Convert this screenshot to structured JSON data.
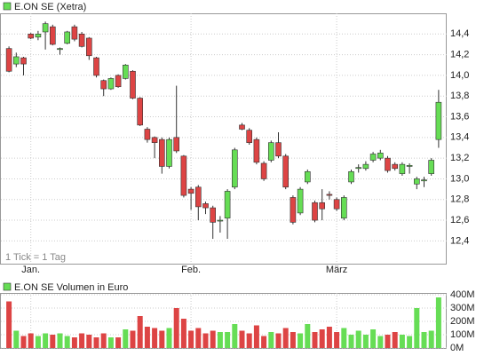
{
  "chart_data": {
    "type": "candlestick",
    "title": "E.ON SE (Xetra)",
    "note": "1 Tick = 1 Tag",
    "up_color": "#66dd55",
    "down_color": "#dd4444",
    "categories": [
      null,
      null,
      null,
      "Jan.",
      null,
      null,
      null,
      null,
      null,
      null,
      null,
      null,
      null,
      null,
      null,
      null,
      null,
      null,
      null,
      null,
      null,
      null,
      null,
      null,
      null,
      "Feb.",
      null,
      null,
      null,
      null,
      null,
      null,
      null,
      null,
      null,
      null,
      null,
      null,
      null,
      null,
      null,
      null,
      null,
      null,
      null,
      "März",
      null,
      null,
      null,
      null,
      null,
      null,
      null,
      null,
      null,
      null,
      null,
      null,
      null,
      null
    ],
    "open": [
      14.26,
      14.11,
      14.17,
      14.4,
      14.37,
      14.42,
      14.47,
      14.25,
      14.31,
      14.47,
      14.4,
      14.36,
      14.17,
      13.95,
      13.87,
      14.0,
      13.97,
      14.04,
      13.78,
      13.48,
      13.4,
      13.38,
      13.12,
      13.4,
      13.22,
      12.9,
      12.92,
      12.76,
      12.72,
      12.6,
      12.62,
      12.92,
      13.52,
      13.47,
      13.38,
      13.15,
      13.18,
      13.35,
      13.22,
      12.82,
      12.67,
      12.97,
      12.77,
      12.77,
      12.85,
      12.8,
      12.62,
      12.97,
      13.1,
      13.1,
      13.18,
      13.2,
      13.2,
      13.14,
      13.05,
      13.12,
      12.95,
      12.98,
      13.05,
      13.38
    ],
    "high": [
      14.28,
      14.22,
      14.18,
      14.41,
      14.43,
      14.52,
      14.49,
      14.27,
      14.43,
      14.49,
      14.42,
      14.37,
      14.18,
      13.96,
      13.98,
      14.01,
      14.11,
      14.05,
      13.79,
      13.5,
      13.41,
      13.4,
      13.4,
      13.9,
      13.23,
      12.92,
      12.94,
      12.78,
      12.74,
      12.64,
      12.9,
      13.3,
      13.54,
      13.49,
      13.4,
      13.17,
      13.37,
      13.45,
      13.24,
      12.84,
      12.92,
      13.09,
      12.79,
      12.9,
      12.88,
      12.82,
      12.84,
      13.09,
      13.14,
      13.17,
      13.26,
      13.28,
      13.22,
      13.16,
      13.16,
      13.15,
      13.02,
      13.02,
      13.2,
      13.86
    ],
    "low": [
      14.03,
      14.08,
      14.0,
      14.35,
      14.34,
      14.25,
      14.29,
      14.2,
      14.3,
      14.33,
      14.27,
      14.15,
      13.98,
      13.8,
      13.86,
      13.88,
      13.96,
      13.77,
      13.51,
      13.35,
      13.2,
      13.05,
      13.1,
      13.25,
      12.82,
      12.7,
      12.6,
      12.66,
      12.42,
      12.48,
      12.42,
      12.9,
      13.47,
      13.33,
      13.14,
      12.98,
      13.16,
      13.2,
      12.9,
      12.56,
      12.65,
      12.95,
      12.58,
      12.6,
      12.8,
      12.69,
      12.6,
      12.95,
      13.06,
      13.08,
      13.16,
      13.18,
      13.06,
      13.08,
      13.03,
      13.05,
      12.9,
      12.92,
      13.03,
      13.3
    ],
    "close": [
      14.04,
      14.18,
      14.11,
      14.36,
      14.4,
      14.5,
      14.3,
      14.26,
      14.42,
      14.35,
      14.28,
      14.19,
      14.0,
      13.87,
      13.97,
      13.89,
      14.1,
      13.78,
      13.52,
      13.38,
      13.35,
      13.12,
      13.38,
      13.27,
      12.84,
      12.86,
      12.73,
      12.72,
      12.58,
      12.6,
      12.88,
      13.28,
      13.48,
      13.35,
      13.16,
      13.0,
      13.35,
      13.22,
      12.92,
      12.58,
      12.9,
      13.07,
      12.6,
      12.71,
      12.84,
      12.71,
      12.82,
      13.07,
      13.11,
      13.14,
      13.24,
      13.25,
      13.08,
      13.1,
      13.14,
      13.13,
      13.0,
      12.99,
      13.18,
      13.74
    ],
    "ylim": [
      12.18,
      14.6
    ],
    "yticks": [
      {
        "value": 12.4,
        "label": "12,4"
      },
      {
        "value": 12.6,
        "label": "12,6"
      },
      {
        "value": 12.8,
        "label": "12,8"
      },
      {
        "value": 13.0,
        "label": "13,0"
      },
      {
        "value": 13.2,
        "label": "13,2"
      },
      {
        "value": 13.4,
        "label": "13,4"
      },
      {
        "value": 13.6,
        "label": "13,6"
      },
      {
        "value": 13.8,
        "label": "13,8"
      },
      {
        "value": 14.0,
        "label": "14,0"
      },
      {
        "value": 14.2,
        "label": "14,2"
      },
      {
        "value": 14.4,
        "label": "14,4"
      }
    ],
    "volume": {
      "title": "E.ON SE Volumen in Euro",
      "values": [
        350,
        130,
        90,
        110,
        90,
        110,
        100,
        110,
        90,
        80,
        110,
        100,
        80,
        110,
        80,
        80,
        140,
        130,
        240,
        160,
        150,
        130,
        150,
        300,
        220,
        130,
        150,
        110,
        130,
        120,
        120,
        180,
        130,
        110,
        170,
        90,
        120,
        110,
        150,
        120,
        110,
        180,
        120,
        140,
        160,
        120,
        150,
        100,
        130,
        100,
        140,
        90,
        100,
        120,
        100,
        90,
        300,
        120,
        130,
        380
      ],
      "ylim": [
        0,
        400
      ],
      "yticks": [
        {
          "value": 0,
          "label": "0M"
        },
        {
          "value": 100,
          "label": "100M"
        },
        {
          "value": 200,
          "label": "200M"
        },
        {
          "value": 300,
          "label": "300M"
        },
        {
          "value": 400,
          "label": "400M"
        }
      ]
    }
  }
}
